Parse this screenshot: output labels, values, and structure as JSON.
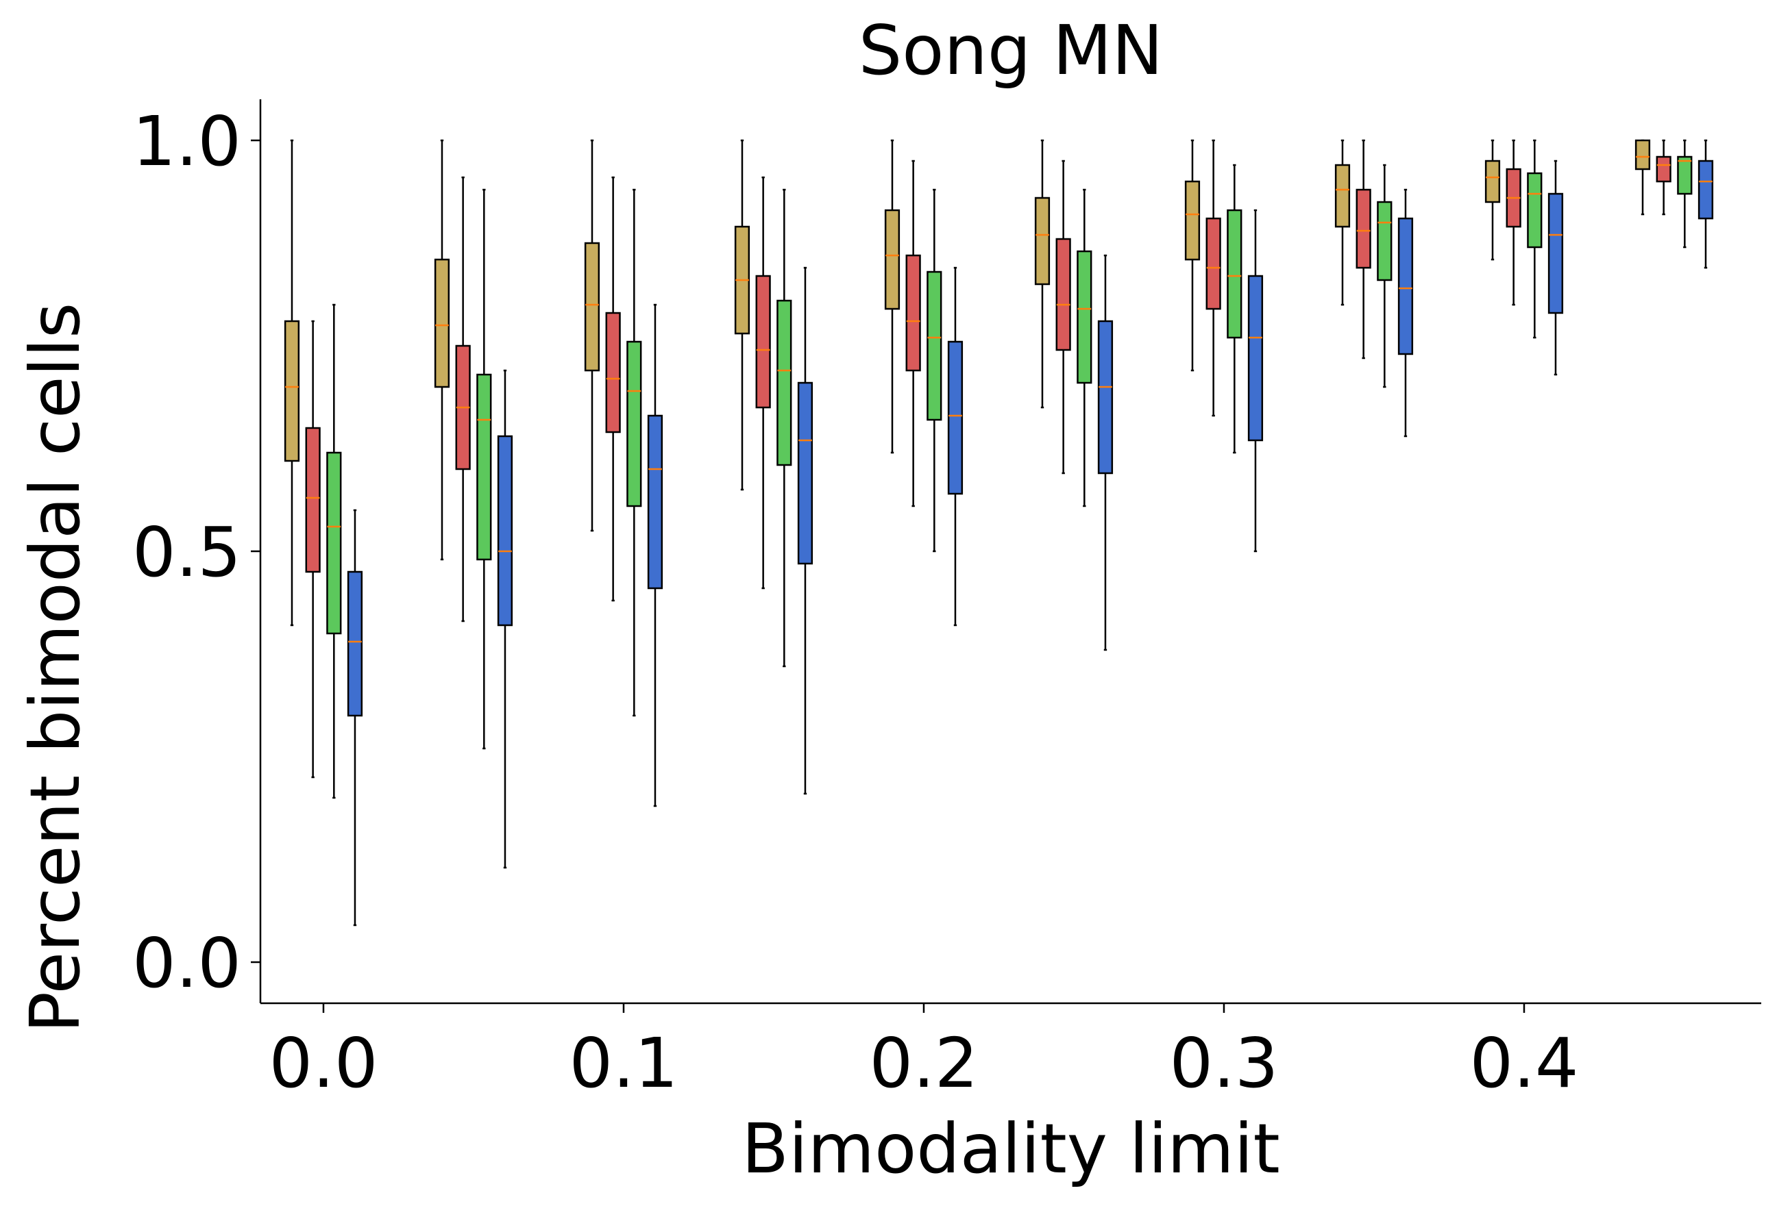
{
  "chart_data": {
    "type": "box",
    "title": "Song MN",
    "xlabel": "Bimodality limit",
    "ylabel": "Percent bimodal cells",
    "xlim": [
      -0.021,
      0.479
    ],
    "ylim": [
      -0.05,
      1.05
    ],
    "xticks": [
      "0.0",
      "0.1",
      "0.2",
      "0.3",
      "0.4"
    ],
    "xtick_values": [
      0.0,
      0.1,
      0.2,
      0.3,
      0.4
    ],
    "yticks": [
      "0.0",
      "0.5",
      "1.0"
    ],
    "ytick_values": [
      0.0,
      0.5,
      1.0
    ],
    "categories": [
      0.0,
      0.05,
      0.1,
      0.15,
      0.2,
      0.25,
      0.3,
      0.35,
      0.4,
      0.45
    ],
    "series_offsets": [
      -0.0105,
      -0.0035,
      0.0035,
      0.0105
    ],
    "median_color": "#ff7f0e",
    "series": [
      {
        "color": "#c8ad5e",
        "boxes": [
          {
            "whislo": 0.41,
            "q1": 0.61,
            "med": 0.7,
            "q3": 0.78,
            "whishi": 1.0
          },
          {
            "whislo": 0.49,
            "q1": 0.7,
            "med": 0.775,
            "q3": 0.855,
            "whishi": 1.0
          },
          {
            "whislo": 0.525,
            "q1": 0.72,
            "med": 0.8,
            "q3": 0.875,
            "whishi": 1.0
          },
          {
            "whislo": 0.575,
            "q1": 0.765,
            "med": 0.83,
            "q3": 0.895,
            "whishi": 1.0
          },
          {
            "whislo": 0.62,
            "q1": 0.795,
            "med": 0.86,
            "q3": 0.915,
            "whishi": 1.0
          },
          {
            "whislo": 0.675,
            "q1": 0.825,
            "med": 0.885,
            "q3": 0.93,
            "whishi": 1.0
          },
          {
            "whislo": 0.72,
            "q1": 0.855,
            "med": 0.91,
            "q3": 0.95,
            "whishi": 1.0
          },
          {
            "whislo": 0.8,
            "q1": 0.895,
            "med": 0.94,
            "q3": 0.97,
            "whishi": 1.0
          },
          {
            "whislo": 0.855,
            "q1": 0.925,
            "med": 0.955,
            "q3": 0.975,
            "whishi": 1.0
          },
          {
            "whislo": 0.91,
            "q1": 0.965,
            "med": 0.98,
            "q3": 1.0,
            "whishi": 1.0
          }
        ]
      },
      {
        "color": "#d95a5a",
        "boxes": [
          {
            "whislo": 0.225,
            "q1": 0.475,
            "med": 0.565,
            "q3": 0.65,
            "whishi": 0.78
          },
          {
            "whislo": 0.415,
            "q1": 0.6,
            "med": 0.675,
            "q3": 0.75,
            "whishi": 0.955
          },
          {
            "whislo": 0.44,
            "q1": 0.645,
            "med": 0.71,
            "q3": 0.79,
            "whishi": 0.955
          },
          {
            "whislo": 0.455,
            "q1": 0.675,
            "med": 0.745,
            "q3": 0.835,
            "whishi": 0.955
          },
          {
            "whislo": 0.555,
            "q1": 0.72,
            "med": 0.78,
            "q3": 0.86,
            "whishi": 0.975
          },
          {
            "whislo": 0.595,
            "q1": 0.745,
            "med": 0.8,
            "q3": 0.88,
            "whishi": 0.975
          },
          {
            "whislo": 0.665,
            "q1": 0.795,
            "med": 0.845,
            "q3": 0.905,
            "whishi": 1.0
          },
          {
            "whislo": 0.735,
            "q1": 0.845,
            "med": 0.89,
            "q3": 0.94,
            "whishi": 1.0
          },
          {
            "whislo": 0.8,
            "q1": 0.895,
            "med": 0.93,
            "q3": 0.965,
            "whishi": 1.0
          },
          {
            "whislo": 0.91,
            "q1": 0.95,
            "med": 0.97,
            "q3": 0.98,
            "whishi": 1.0
          }
        ]
      },
      {
        "color": "#5cc85c",
        "boxes": [
          {
            "whislo": 0.2,
            "q1": 0.4,
            "med": 0.53,
            "q3": 0.62,
            "whishi": 0.8
          },
          {
            "whislo": 0.26,
            "q1": 0.49,
            "med": 0.66,
            "q3": 0.715,
            "whishi": 0.94
          },
          {
            "whislo": 0.3,
            "q1": 0.555,
            "med": 0.695,
            "q3": 0.755,
            "whishi": 0.94
          },
          {
            "whislo": 0.36,
            "q1": 0.605,
            "med": 0.72,
            "q3": 0.805,
            "whishi": 0.94
          },
          {
            "whislo": 0.5,
            "q1": 0.66,
            "med": 0.76,
            "q3": 0.84,
            "whishi": 0.94
          },
          {
            "whislo": 0.555,
            "q1": 0.705,
            "med": 0.795,
            "q3": 0.865,
            "whishi": 0.94
          },
          {
            "whislo": 0.62,
            "q1": 0.76,
            "med": 0.835,
            "q3": 0.915,
            "whishi": 0.97
          },
          {
            "whislo": 0.7,
            "q1": 0.83,
            "med": 0.9,
            "q3": 0.925,
            "whishi": 0.97
          },
          {
            "whislo": 0.76,
            "q1": 0.87,
            "med": 0.935,
            "q3": 0.96,
            "whishi": 1.0
          },
          {
            "whislo": 0.87,
            "q1": 0.935,
            "med": 0.975,
            "q3": 0.98,
            "whishi": 1.0
          }
        ]
      },
      {
        "color": "#3f6fcf",
        "boxes": [
          {
            "whislo": 0.045,
            "q1": 0.3,
            "med": 0.39,
            "q3": 0.475,
            "whishi": 0.55
          },
          {
            "whislo": 0.115,
            "q1": 0.41,
            "med": 0.5,
            "q3": 0.64,
            "whishi": 0.72
          },
          {
            "whislo": 0.19,
            "q1": 0.455,
            "med": 0.6,
            "q3": 0.665,
            "whishi": 0.8
          },
          {
            "whislo": 0.205,
            "q1": 0.485,
            "med": 0.635,
            "q3": 0.705,
            "whishi": 0.845
          },
          {
            "whislo": 0.41,
            "q1": 0.57,
            "med": 0.665,
            "q3": 0.755,
            "whishi": 0.845
          },
          {
            "whislo": 0.38,
            "q1": 0.595,
            "med": 0.7,
            "q3": 0.78,
            "whishi": 0.86
          },
          {
            "whislo": 0.5,
            "q1": 0.635,
            "med": 0.76,
            "q3": 0.835,
            "whishi": 0.915
          },
          {
            "whislo": 0.64,
            "q1": 0.74,
            "med": 0.82,
            "q3": 0.905,
            "whishi": 0.94
          },
          {
            "whislo": 0.715,
            "q1": 0.79,
            "med": 0.885,
            "q3": 0.935,
            "whishi": 0.975
          },
          {
            "whislo": 0.845,
            "q1": 0.905,
            "med": 0.95,
            "q3": 0.975,
            "whishi": 1.0
          }
        ]
      }
    ]
  }
}
